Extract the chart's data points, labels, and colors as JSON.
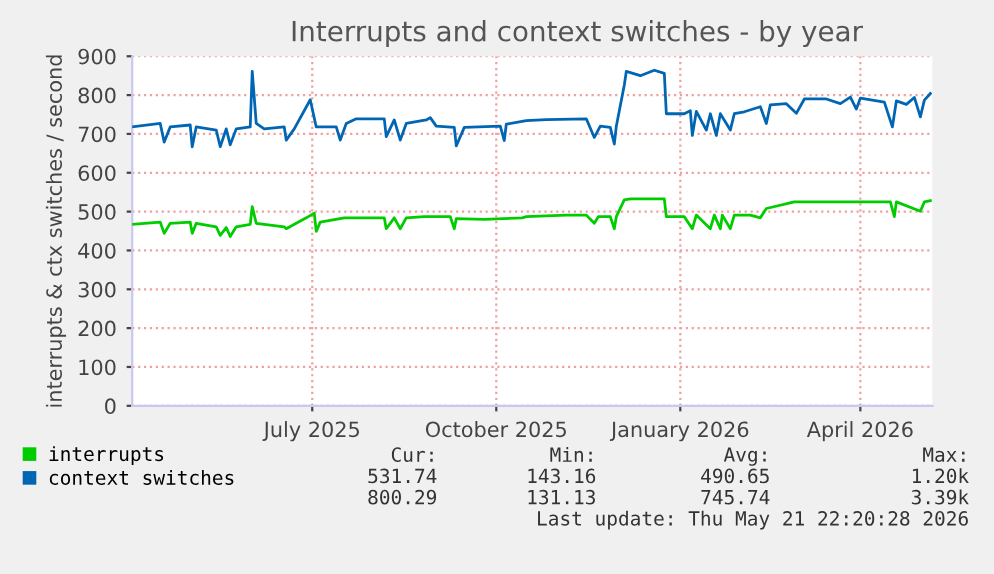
{
  "chart_data": {
    "type": "line",
    "title": "Interrupts and context switches - by year",
    "ylabel": "interrupts & ctx switches / second",
    "xlim": [
      "2025-04-17",
      "2026-05-22"
    ],
    "ylim": [
      0,
      900
    ],
    "yticks": [
      0,
      100,
      200,
      300,
      400,
      500,
      600,
      700,
      800,
      900
    ],
    "xticks": [
      {
        "value": "2025-07-16",
        "label": "July 2025"
      },
      {
        "value": "2025-10-16",
        "label": "October 2025"
      },
      {
        "value": "2026-01-16",
        "label": "January 2026"
      },
      {
        "value": "2026-04-16",
        "label": "April 2026"
      }
    ],
    "grid": true,
    "legend": "bottom",
    "marker": "none",
    "line_style": "solid",
    "series": [
      {
        "name": "interrupts",
        "color": "#00cc00",
        "x": [
          "2025-04-17",
          "2025-05-01",
          "2025-05-03",
          "2025-05-06",
          "2025-05-16",
          "2025-05-17",
          "2025-05-19",
          "2025-05-29",
          "2025-05-31",
          "2025-06-03",
          "2025-06-05",
          "2025-06-08",
          "2025-06-15",
          "2025-06-16",
          "2025-06-18",
          "2025-07-02",
          "2025-07-03",
          "2025-07-13",
          "2025-07-17",
          "2025-07-18",
          "2025-07-20",
          "2025-08-01",
          "2025-08-21",
          "2025-08-22",
          "2025-08-26",
          "2025-08-29",
          "2025-09-01",
          "2025-09-10",
          "2025-09-23",
          "2025-09-25",
          "2025-09-26",
          "2025-10-10",
          "2025-10-29",
          "2025-10-31",
          "2025-11-20",
          "2025-11-30",
          "2025-12-04",
          "2025-12-06",
          "2025-12-12",
          "2025-12-14",
          "2025-12-15",
          "2025-12-19",
          "2025-12-22",
          "2026-01-08",
          "2026-01-09",
          "2026-01-18",
          "2026-01-22",
          "2026-01-24",
          "2026-01-31",
          "2026-02-02",
          "2026-02-05",
          "2026-02-06",
          "2026-02-10",
          "2026-02-12",
          "2026-02-20",
          "2026-02-25",
          "2026-02-28",
          "2026-03-14",
          "2026-03-30",
          "2026-05-01",
          "2026-05-03",
          "2026-05-04",
          "2026-05-16",
          "2026-05-18",
          "2026-05-21"
        ],
        "values": [
          467,
          473,
          444,
          470,
          473,
          444,
          470,
          461,
          439,
          459,
          436,
          461,
          467,
          513,
          470,
          461,
          456,
          484,
          496,
          449,
          473,
          484,
          484,
          456,
          484,
          456,
          484,
          487,
          487,
          456,
          482,
          480,
          484,
          487,
          491,
          491,
          470,
          487,
          487,
          456,
          487,
          530,
          533,
          533,
          487,
          487,
          456,
          491,
          456,
          491,
          456,
          491,
          456,
          491,
          491,
          484,
          508,
          525,
          525,
          525,
          487,
          525,
          501,
          525,
          528
        ]
      },
      {
        "name": "context switches",
        "color": "#0066b3",
        "x": [
          "2025-04-17",
          "2025-05-01",
          "2025-05-03",
          "2025-05-06",
          "2025-05-16",
          "2025-05-17",
          "2025-05-19",
          "2025-05-29",
          "2025-05-31",
          "2025-06-03",
          "2025-06-05",
          "2025-06-08",
          "2025-06-15",
          "2025-06-16",
          "2025-06-18",
          "2025-06-22",
          "2025-07-02",
          "2025-07-03",
          "2025-07-07",
          "2025-07-15",
          "2025-07-18",
          "2025-07-28",
          "2025-07-30",
          "2025-08-02",
          "2025-08-07",
          "2025-08-21",
          "2025-08-22",
          "2025-08-26",
          "2025-08-29",
          "2025-09-01",
          "2025-09-11",
          "2025-09-13",
          "2025-09-16",
          "2025-09-25",
          "2025-09-26",
          "2025-09-30",
          "2025-10-18",
          "2025-10-20",
          "2025-10-21",
          "2025-10-31",
          "2025-11-10",
          "2025-11-30",
          "2025-12-04",
          "2025-12-07",
          "2025-12-12",
          "2025-12-14",
          "2025-12-15",
          "2025-12-19",
          "2025-12-20",
          "2025-12-27",
          "2026-01-03",
          "2026-01-08",
          "2026-01-09",
          "2026-01-18",
          "2026-01-21",
          "2026-01-22",
          "2026-01-24",
          "2026-01-29",
          "2026-01-31",
          "2026-02-03",
          "2026-02-05",
          "2026-02-10",
          "2026-02-12",
          "2026-02-17",
          "2026-02-25",
          "2026-02-28",
          "2026-03-02",
          "2026-03-10",
          "2026-03-15",
          "2026-03-19",
          "2026-03-30",
          "2026-04-06",
          "2026-04-11",
          "2026-04-14",
          "2026-04-16",
          "2026-04-28",
          "2026-05-02",
          "2026-05-04",
          "2026-05-09",
          "2026-05-13",
          "2026-05-16",
          "2026-05-18",
          "2026-05-21"
        ],
        "values": [
          718,
          727,
          679,
          718,
          723,
          667,
          718,
          710,
          667,
          713,
          672,
          713,
          718,
          861,
          727,
          713,
          718,
          684,
          713,
          788,
          718,
          718,
          684,
          727,
          739,
          739,
          693,
          736,
          684,
          727,
          736,
          742,
          720,
          717,
          669,
          717,
          720,
          683,
          725,
          734,
          737,
          739,
          691,
          720,
          717,
          674,
          720,
          826,
          861,
          850,
          864,
          856,
          752,
          752,
          760,
          696,
          758,
          710,
          752,
          696,
          752,
          710,
          752,
          757,
          770,
          727,
          775,
          778,
          753,
          790,
          790,
          778,
          795,
          764,
          792,
          782,
          718,
          785,
          776,
          794,
          744,
          787,
          804
        ]
      }
    ],
    "annotations": [
      "Cur:",
      "Min:",
      "Avg:",
      "Max:",
      "531.74",
      "143.16",
      "490.65",
      "1.20k",
      "800.29",
      "131.13",
      "745.74",
      "3.39k",
      "Last update: Thu May 21 22:20:28 2026"
    ]
  }
}
